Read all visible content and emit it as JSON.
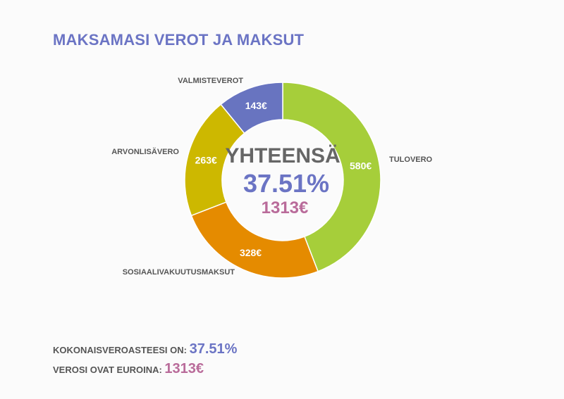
{
  "title": "MAKSAMASI VEROT JA MAKSUT",
  "chart_data": {
    "type": "pie",
    "variant": "donut",
    "categories": [
      "TULOVERO",
      "SOSIAALIVAKUUTUSMAKSUT",
      "ARVONLISÄVERO",
      "VALMISTEVEROT"
    ],
    "values": [
      580,
      328,
      263,
      143
    ],
    "value_labels": [
      "580€",
      "328€",
      "263€",
      "143€"
    ],
    "colors": [
      "#a6ce3a",
      "#e58b00",
      "#cdb800",
      "#6874c0"
    ],
    "center": {
      "title": "YHTEENSÄ",
      "percent": "37.51%",
      "total": "1313€"
    }
  },
  "summary": {
    "rate_label": "KOKONAISVEROASTEESI ON: ",
    "rate_value": "37.51%",
    "euro_label": "VEROSI OVAT EUROINA: ",
    "euro_value": "1313€"
  }
}
